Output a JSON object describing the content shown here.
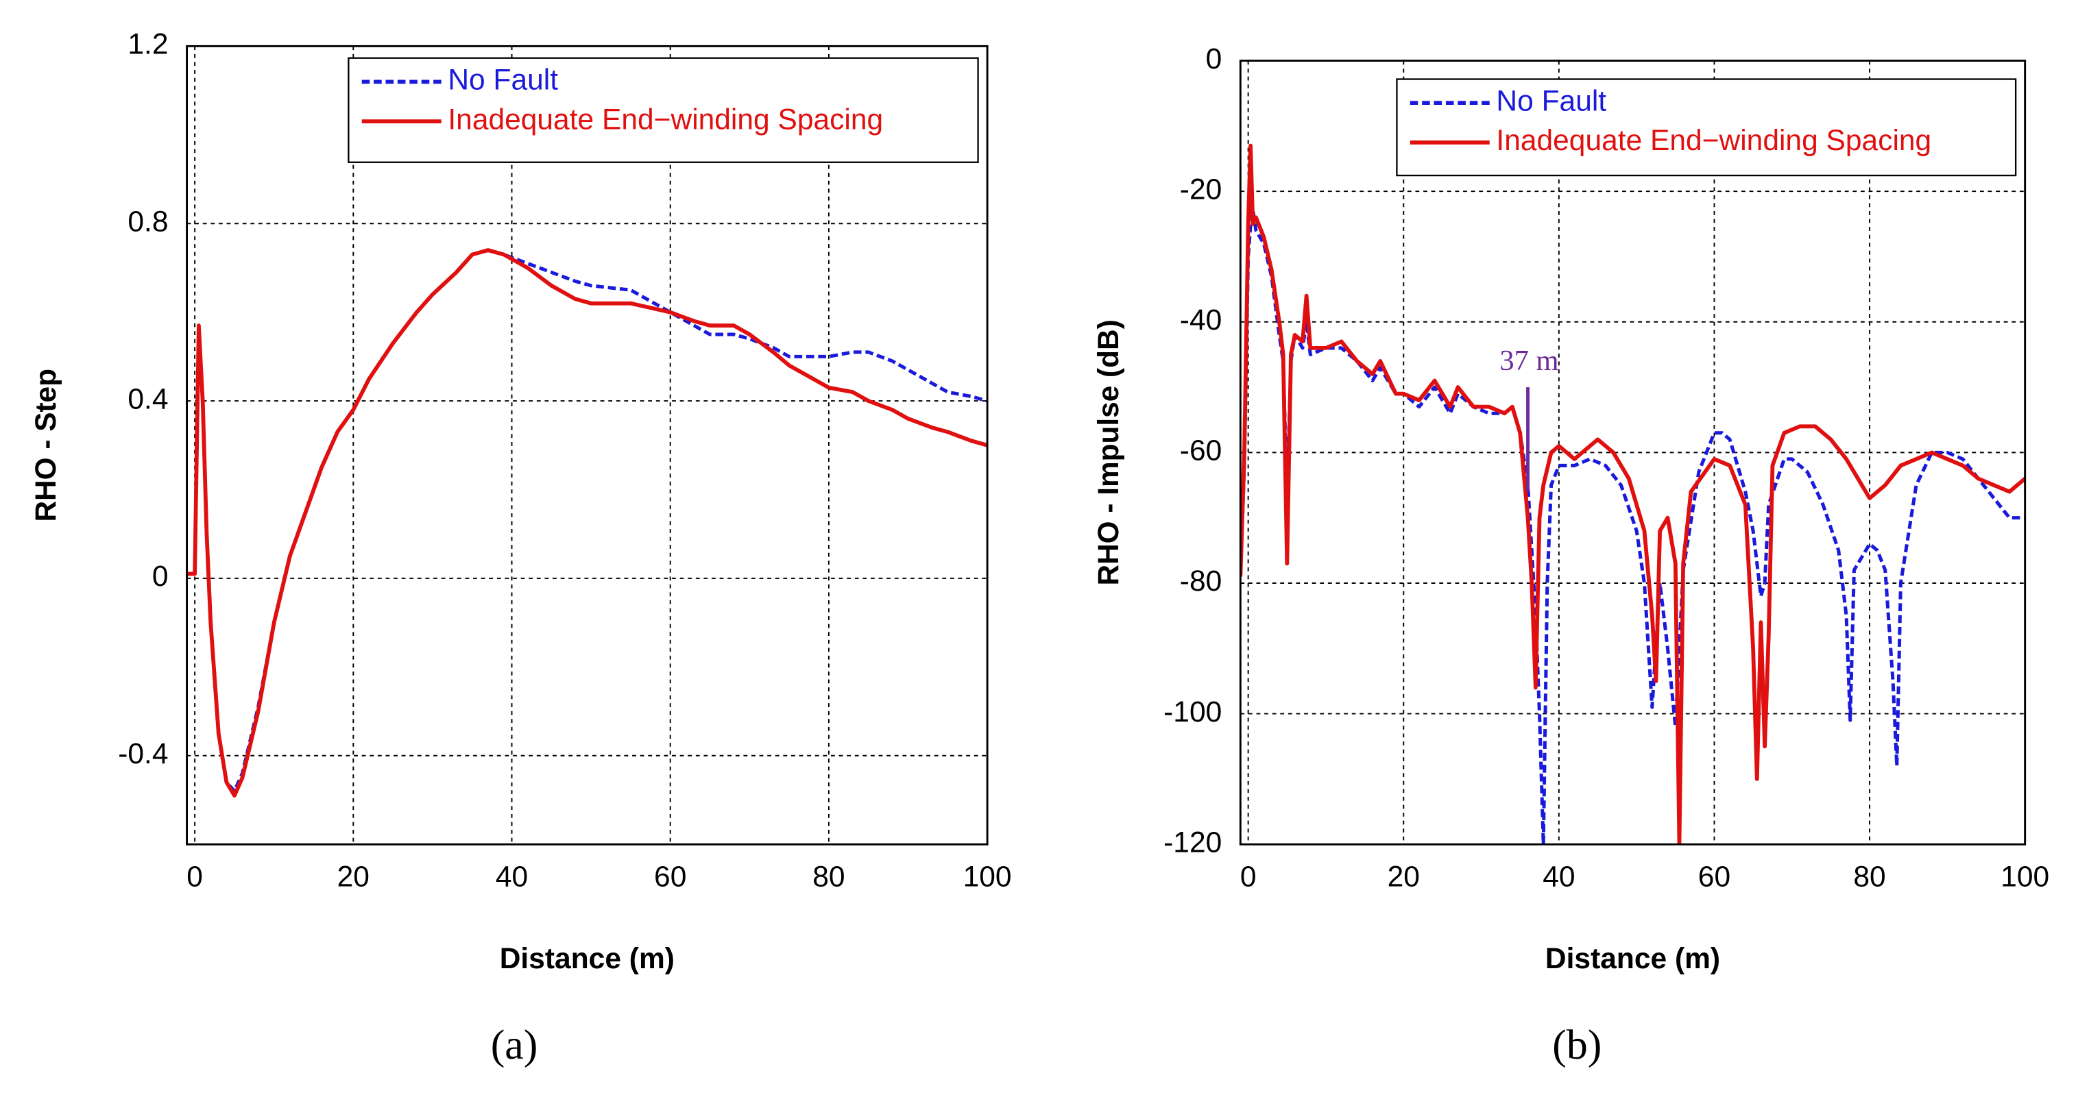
{
  "chart_data": [
    {
      "type": "line",
      "label": "(a)",
      "xlabel": "Distance (m)",
      "ylabel": "RHO - Step",
      "xlim": [
        -1,
        100
      ],
      "ylim": [
        -0.6,
        1.2
      ],
      "xticks": [
        0,
        20,
        40,
        60,
        80,
        100
      ],
      "yticks": [
        -0.4,
        0,
        0.4,
        0.8,
        1.2
      ],
      "grid": true,
      "legend": "upper right",
      "series": [
        {
          "name": "No Fault",
          "color": "#1a1adc",
          "style": "dashed",
          "x": [
            -1,
            0,
            0.5,
            1,
            1.5,
            2,
            3,
            4,
            5,
            6,
            8,
            10,
            12,
            14,
            16,
            18,
            20,
            22,
            25,
            28,
            30,
            33,
            35,
            37,
            39,
            42,
            45,
            48,
            50,
            55,
            60,
            63,
            65,
            68,
            70,
            73,
            75,
            78,
            80,
            83,
            85,
            88,
            90,
            93,
            95,
            98,
            100
          ],
          "values": [
            0.01,
            0.01,
            0.55,
            0.4,
            0.1,
            -0.1,
            -0.35,
            -0.46,
            -0.48,
            -0.44,
            -0.29,
            -0.1,
            0.05,
            0.15,
            0.25,
            0.33,
            0.38,
            0.45,
            0.53,
            0.6,
            0.64,
            0.69,
            0.73,
            0.74,
            0.73,
            0.71,
            0.69,
            0.67,
            0.66,
            0.65,
            0.6,
            0.57,
            0.55,
            0.55,
            0.54,
            0.52,
            0.5,
            0.5,
            0.5,
            0.51,
            0.51,
            0.49,
            0.47,
            0.44,
            0.42,
            0.41,
            0.4
          ]
        },
        {
          "name": "Inadequate End−winding Spacing",
          "color": "#e01010",
          "style": "solid",
          "x": [
            -1,
            0,
            0.5,
            1,
            1.5,
            2,
            3,
            4,
            5,
            6,
            8,
            10,
            12,
            14,
            16,
            18,
            20,
            22,
            25,
            28,
            30,
            33,
            35,
            37,
            39,
            42,
            45,
            48,
            50,
            55,
            60,
            63,
            65,
            68,
            70,
            73,
            75,
            78,
            80,
            83,
            85,
            88,
            90,
            93,
            95,
            98,
            100
          ],
          "values": [
            0.01,
            0.01,
            0.57,
            0.4,
            0.1,
            -0.1,
            -0.35,
            -0.46,
            -0.49,
            -0.45,
            -0.3,
            -0.1,
            0.05,
            0.15,
            0.25,
            0.33,
            0.38,
            0.45,
            0.53,
            0.6,
            0.64,
            0.69,
            0.73,
            0.74,
            0.73,
            0.7,
            0.66,
            0.63,
            0.62,
            0.62,
            0.6,
            0.58,
            0.57,
            0.57,
            0.55,
            0.51,
            0.48,
            0.45,
            0.43,
            0.42,
            0.4,
            0.38,
            0.36,
            0.34,
            0.33,
            0.31,
            0.3
          ]
        }
      ]
    },
    {
      "type": "line",
      "label": "(b)",
      "xlabel": "Distance (m)",
      "ylabel": "RHO - Impulse (dB)",
      "xlim": [
        -1,
        100
      ],
      "ylim": [
        -120,
        0
      ],
      "xticks": [
        0,
        20,
        40,
        60,
        80,
        100
      ],
      "yticks": [
        -120,
        -100,
        -80,
        -60,
        -40,
        -20,
        0
      ],
      "grid": true,
      "legend": "upper right",
      "annotation": {
        "text": "37 m",
        "x": 36,
        "y": [
          -50,
          -66
        ],
        "color": "#6a2a9a"
      },
      "series": [
        {
          "name": "No Fault",
          "color": "#1a1adc",
          "style": "dashed",
          "x": [
            -1,
            -0.5,
            0,
            0.5,
            1,
            2,
            3,
            4,
            4.5,
            5,
            5.5,
            6,
            7,
            7.5,
            8,
            10,
            12,
            14,
            16,
            17,
            19,
            20,
            22,
            24,
            26,
            27,
            29,
            31,
            33,
            34,
            35,
            36,
            36.5,
            37,
            37.5,
            38,
            38.5,
            39,
            40,
            42,
            44,
            46,
            48,
            50,
            51,
            52,
            53,
            54,
            55,
            56,
            58,
            60,
            61,
            62,
            64,
            65,
            66,
            66.5,
            67,
            69,
            70,
            72,
            74,
            76,
            77,
            77.5,
            78,
            80,
            81,
            82,
            83,
            83.5,
            84,
            86,
            88,
            90,
            92,
            94,
            96,
            98,
            100
          ],
          "values": [
            -79,
            -62,
            -30,
            -22,
            -26,
            -28,
            -33,
            -42,
            -46,
            -67,
            -46,
            -42,
            -44,
            -40,
            -45,
            -44,
            -44,
            -46,
            -49,
            -47,
            -51,
            -51,
            -53,
            -50,
            -54,
            -51,
            -53,
            -54,
            -54,
            -53,
            -57,
            -65,
            -75,
            -85,
            -100,
            -120,
            -80,
            -65,
            -62,
            -62,
            -61,
            -62,
            -65,
            -72,
            -80,
            -99,
            -80,
            -90,
            -102,
            -78,
            -63,
            -57,
            -57,
            -58,
            -66,
            -72,
            -82,
            -80,
            -68,
            -61,
            -61,
            -63,
            -68,
            -75,
            -85,
            -101,
            -78,
            -74,
            -75,
            -78,
            -95,
            -108,
            -80,
            -65,
            -60,
            -60,
            -61,
            -64,
            -67,
            -70,
            -70
          ]
        },
        {
          "name": "Inadequate End−winding Spacing",
          "color": "#e01010",
          "style": "solid",
          "x": [
            -1,
            -0.5,
            0,
            0.3,
            0.6,
            1,
            2,
            3,
            4,
            4.5,
            5,
            5.5,
            6,
            7,
            7.5,
            8,
            10,
            12,
            14,
            16,
            17,
            19,
            20,
            22,
            24,
            26,
            27,
            29,
            31,
            33,
            34,
            35,
            36,
            36.5,
            37,
            37.5,
            38,
            39,
            40,
            42,
            44,
            45,
            47,
            49,
            51,
            52,
            52.5,
            53,
            54,
            55,
            55.5,
            56,
            57,
            60,
            62,
            64,
            65,
            65.5,
            66,
            66.5,
            67,
            67.5,
            69,
            71,
            73,
            75,
            77,
            79,
            80,
            82,
            84,
            86,
            88,
            90,
            92,
            94,
            96,
            98,
            100
          ],
          "values": [
            -79,
            -60,
            -25,
            -13,
            -25,
            -24,
            -27,
            -32,
            -40,
            -45,
            -77,
            -45,
            -42,
            -43,
            -36,
            -44,
            -44,
            -43,
            -46,
            -48,
            -46,
            -51,
            -51,
            -52,
            -49,
            -53,
            -50,
            -53,
            -53,
            -54,
            -53,
            -57,
            -70,
            -80,
            -96,
            -70,
            -65,
            -60,
            -59,
            -61,
            -59,
            -58,
            -60,
            -64,
            -72,
            -85,
            -95,
            -72,
            -70,
            -77,
            -120,
            -77,
            -66,
            -61,
            -62,
            -68,
            -90,
            -110,
            -86,
            -105,
            -88,
            -62,
            -57,
            -56,
            -56,
            -58,
            -61,
            -65,
            -67,
            -65,
            -62,
            -61,
            -60,
            -61,
            -62,
            -64,
            -65,
            -66,
            -64
          ]
        }
      ]
    }
  ]
}
